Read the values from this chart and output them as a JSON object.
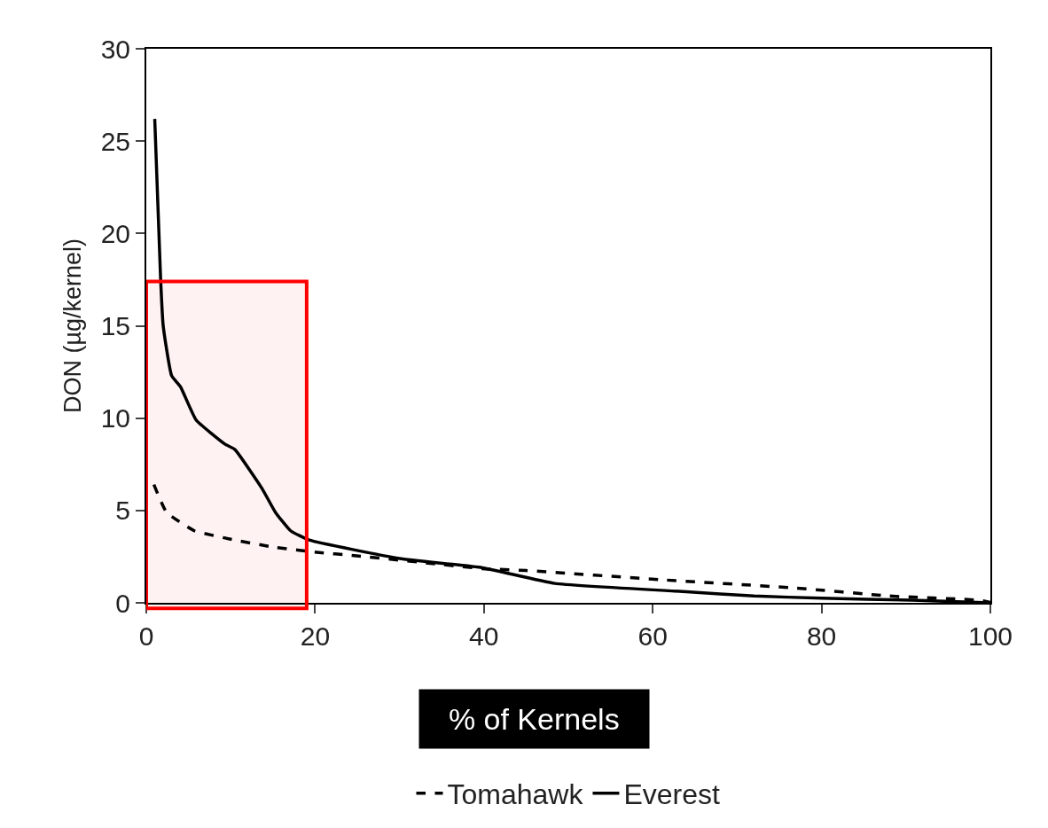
{
  "chart_data": {
    "type": "line",
    "xlabel": "% of Kernels",
    "ylabel": "DON (µg/kernel)",
    "xlim": [
      0,
      100
    ],
    "xticks": [
      0,
      20,
      40,
      60,
      80,
      100
    ],
    "ylim": [
      0,
      30
    ],
    "yticks": [
      0,
      5,
      10,
      15,
      20,
      25,
      30
    ],
    "legend": "bottom",
    "bands": [
      {
        "axis": "x",
        "from": 0,
        "to": 19,
        "color": "#ff0000"
      }
    ],
    "marker": "none",
    "series": [
      {
        "name": "Tomahawk",
        "color": "#000000",
        "line_style": "dashed",
        "x": [
          0.9,
          2.4,
          5.7,
          10.5,
          15.3,
          21,
          23.7,
          34.5,
          39.8,
          45,
          61,
          77,
          88,
          98.7,
          100
        ],
        "values": [
          6.4,
          4.9,
          3.9,
          3.4,
          3.0,
          2.7,
          2.6,
          2.1,
          1.85,
          1.75,
          1.25,
          0.8,
          0.37,
          0.14,
          0.02
        ]
      },
      {
        "name": "Everest",
        "color": "#000000",
        "line_style": "solid",
        "x": [
          1,
          1.7,
          2.0,
          3.0,
          4.05,
          5.9,
          9.3,
          10.5,
          13.7,
          15.3,
          17.1,
          19.3,
          30,
          39.8,
          48.4,
          64,
          72,
          80,
          90.8,
          100
        ],
        "values": [
          26.2,
          17.5,
          15.0,
          12.3,
          11.7,
          9.9,
          8.6,
          8.3,
          6.2,
          4.9,
          3.9,
          3.4,
          2.4,
          1.9,
          1.05,
          0.6,
          0.37,
          0.25,
          0.14,
          0
        ]
      }
    ]
  }
}
